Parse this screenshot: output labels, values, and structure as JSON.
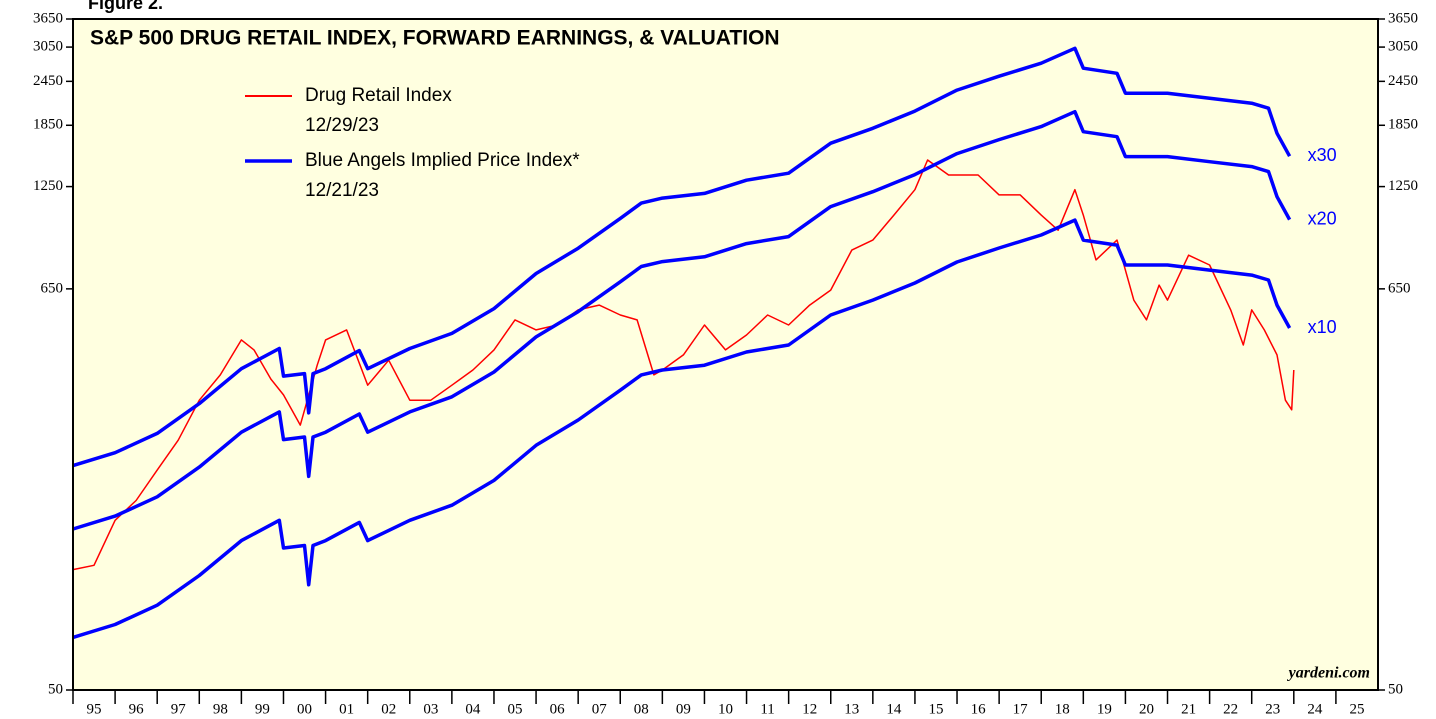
{
  "chart_data": {
    "type": "line",
    "figure_label": "Figure 2.",
    "title": "S&P 500 DRUG RETAIL INDEX, FORWARD EARNINGS, & VALUATION",
    "source": "yardeni.com",
    "log_scale": true,
    "xlim": [
      1995,
      2026
    ],
    "xticks": [
      {
        "value": 1995,
        "label": "95"
      },
      {
        "value": 1996,
        "label": "96"
      },
      {
        "value": 1997,
        "label": "97"
      },
      {
        "value": 1998,
        "label": "98"
      },
      {
        "value": 1999,
        "label": "99"
      },
      {
        "value": 2000,
        "label": "00"
      },
      {
        "value": 2001,
        "label": "01"
      },
      {
        "value": 2002,
        "label": "02"
      },
      {
        "value": 2003,
        "label": "03"
      },
      {
        "value": 2004,
        "label": "04"
      },
      {
        "value": 2005,
        "label": "05"
      },
      {
        "value": 2006,
        "label": "06"
      },
      {
        "value": 2007,
        "label": "07"
      },
      {
        "value": 2008,
        "label": "08"
      },
      {
        "value": 2009,
        "label": "09"
      },
      {
        "value": 2010,
        "label": "10"
      },
      {
        "value": 2011,
        "label": "11"
      },
      {
        "value": 2012,
        "label": "12"
      },
      {
        "value": 2013,
        "label": "13"
      },
      {
        "value": 2014,
        "label": "14"
      },
      {
        "value": 2015,
        "label": "15"
      },
      {
        "value": 2016,
        "label": "16"
      },
      {
        "value": 2017,
        "label": "17"
      },
      {
        "value": 2018,
        "label": "18"
      },
      {
        "value": 2019,
        "label": "19"
      },
      {
        "value": 2020,
        "label": "20"
      },
      {
        "value": 2021,
        "label": "21"
      },
      {
        "value": 2022,
        "label": "22"
      },
      {
        "value": 2023,
        "label": "23"
      },
      {
        "value": 2024,
        "label": "24"
      },
      {
        "value": 2025,
        "label": "25"
      }
    ],
    "ylim": [
      50,
      3650
    ],
    "yticks": [
      50,
      650,
      1250,
      1850,
      2450,
      3050,
      3650
    ],
    "series": [
      {
        "name": "Drug Retail Index",
        "date": "12/29/23",
        "color": "#ff0000",
        "x": [
          1995.0,
          1995.5,
          1996.0,
          1996.5,
          1997.0,
          1997.5,
          1998.0,
          1998.5,
          1999.0,
          1999.3,
          1999.7,
          2000.0,
          2000.4,
          2000.8,
          2001.0,
          2001.5,
          2002.0,
          2002.5,
          2003.0,
          2003.5,
          2004.0,
          2004.5,
          2005.0,
          2005.5,
          2006.0,
          2006.5,
          2007.0,
          2007.5,
          2008.0,
          2008.4,
          2008.8,
          2009.0,
          2009.5,
          2010.0,
          2010.5,
          2011.0,
          2011.5,
          2012.0,
          2012.5,
          2013.0,
          2013.5,
          2014.0,
          2014.5,
          2015.0,
          2015.3,
          2015.8,
          2016.5,
          2017.0,
          2017.5,
          2018.0,
          2018.4,
          2018.8,
          2019.0,
          2019.3,
          2019.8,
          2020.2,
          2020.5,
          2020.8,
          2021.0,
          2021.5,
          2022.0,
          2022.5,
          2022.8,
          2023.0,
          2023.3,
          2023.6,
          2023.8,
          2023.95,
          2024.0
        ],
        "values": [
          108,
          111,
          148,
          168,
          204,
          247,
          319,
          375,
          469,
          440,
          365,
          330,
          272,
          399,
          469,
          500,
          351,
          412,
          319,
          319,
          351,
          387,
          440,
          533,
          500,
          516,
          568,
          586,
          550,
          533,
          375,
          387,
          426,
          516,
          440,
          484,
          550,
          516,
          586,
          645,
          833,
          888,
          1042,
          1225,
          1482,
          1346,
          1346,
          1185,
          1185,
          1042,
          946,
          1225,
          1042,
          782,
          888,
          605,
          533,
          666,
          605,
          806,
          757,
          568,
          454,
          568,
          500,
          426,
          319,
          300,
          387
        ]
      },
      {
        "name": "Blue Angels Implied Price Index*",
        "date": "12/21/23",
        "color": "#0000ff",
        "x": [
          1995.0,
          1996.0,
          1997.0,
          1998.0,
          1999.0,
          1999.9,
          2000.0,
          2000.5,
          2000.6,
          2000.7,
          2001.0,
          2001.8,
          2002.0,
          2003.0,
          2004.0,
          2005.0,
          2006.0,
          2007.0,
          2008.0,
          2008.5,
          2009.0,
          2010.0,
          2011.0,
          2012.0,
          2013.0,
          2014.0,
          2015.0,
          2016.0,
          2017.0,
          2018.0,
          2018.8,
          2019.0,
          2019.8,
          2020.0,
          2021.0,
          2022.0,
          2023.0,
          2023.4,
          2023.6,
          2023.9
        ],
        "bands": [
          {
            "label": "x30",
            "values": [
              210,
              228,
              258,
              312,
              390,
              444,
              372,
              378,
              294,
              378,
              390,
              438,
              390,
              444,
              489,
              573,
              717,
              843,
              1020,
              1125,
              1161,
              1197,
              1302,
              1362,
              1650,
              1815,
              2025,
              2316,
              2532,
              2751,
              3027,
              2664,
              2580,
              2271,
              2271,
              2199,
              2130,
              2064,
              1758,
              1518
            ]
          },
          {
            "label": "x20",
            "values": [
              140,
              152,
              172,
              208,
              260,
              296,
              248,
              252,
              196,
              252,
              260,
              292,
              260,
              296,
              326,
              382,
              478,
              562,
              680,
              750,
              774,
              798,
              868,
              908,
              1100,
              1210,
              1350,
              1544,
              1688,
              1834,
              2018,
              1776,
              1720,
              1514,
              1514,
              1466,
              1420,
              1376,
              1172,
              1012
            ]
          },
          {
            "label": "x10",
            "values": [
              70,
              76,
              86,
              104,
              130,
              148,
              124,
              126,
              98,
              126,
              130,
              146,
              130,
              148,
              163,
              191,
              239,
              281,
              340,
              375,
              387,
              399,
              434,
              454,
              550,
              605,
              675,
              772,
              844,
              917,
              1009,
              888,
              860,
              757,
              757,
              733,
              710,
              688,
              586,
              506
            ]
          }
        ]
      }
    ]
  }
}
